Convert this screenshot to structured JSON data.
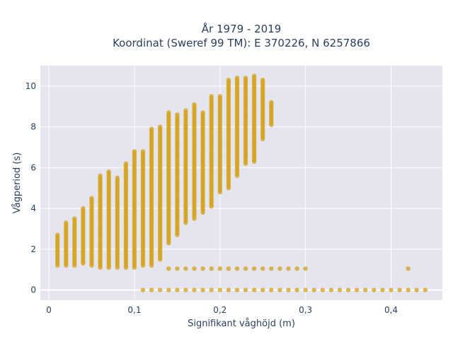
{
  "chart_data": {
    "type": "scatter",
    "title_lines": [
      "År 1979 - 2019",
      "Koordinat (Sweref 99 TM): E 370226, N 6257866"
    ],
    "xlabel": "Signifikant våghöjd (m)",
    "ylabel": "Vågperiod (s)",
    "xlim": [
      -0.01,
      0.46
    ],
    "ylim": [
      -0.5,
      11
    ],
    "x_ticks": [
      0,
      0.1,
      0.2,
      0.3,
      0.4
    ],
    "x_tick_labels": [
      "0",
      "0,1",
      "0,2",
      "0,3",
      "0,4"
    ],
    "y_ticks": [
      0,
      2,
      4,
      6,
      8,
      10
    ],
    "y_tick_labels": [
      "0",
      "2",
      "4",
      "6",
      "8",
      "10"
    ],
    "grid": true,
    "marker_color": "#D4A017",
    "background_color": "#E5E5F0",
    "columns": [
      {
        "x": 0.01,
        "y_min": 1.2,
        "y_max": 2.7
      },
      {
        "x": 0.02,
        "y_min": 1.2,
        "y_max": 3.3
      },
      {
        "x": 0.03,
        "y_min": 1.2,
        "y_max": 3.5
      },
      {
        "x": 0.04,
        "y_min": 1.3,
        "y_max": 4.0
      },
      {
        "x": 0.05,
        "y_min": 1.2,
        "y_max": 4.5
      },
      {
        "x": 0.06,
        "y_min": 1.1,
        "y_max": 5.6
      },
      {
        "x": 0.07,
        "y_min": 1.1,
        "y_max": 5.8
      },
      {
        "x": 0.08,
        "y_min": 1.1,
        "y_max": 5.5
      },
      {
        "x": 0.09,
        "y_min": 1.1,
        "y_max": 6.2
      },
      {
        "x": 0.1,
        "y_min": 1.1,
        "y_max": 6.8
      },
      {
        "x": 0.11,
        "y_min": 1.2,
        "y_max": 6.8
      },
      {
        "x": 0.12,
        "y_min": 1.2,
        "y_max": 7.9
      },
      {
        "x": 0.13,
        "y_min": 1.5,
        "y_max": 8.0
      },
      {
        "x": 0.14,
        "y_min": 2.3,
        "y_max": 8.7
      },
      {
        "x": 0.15,
        "y_min": 2.7,
        "y_max": 8.6
      },
      {
        "x": 0.16,
        "y_min": 3.3,
        "y_max": 8.8
      },
      {
        "x": 0.17,
        "y_min": 3.5,
        "y_max": 9.1
      },
      {
        "x": 0.18,
        "y_min": 3.8,
        "y_max": 8.7
      },
      {
        "x": 0.19,
        "y_min": 4.1,
        "y_max": 9.5
      },
      {
        "x": 0.2,
        "y_min": 4.8,
        "y_max": 9.5
      },
      {
        "x": 0.21,
        "y_min": 5.0,
        "y_max": 10.3
      },
      {
        "x": 0.22,
        "y_min": 5.6,
        "y_max": 10.4
      },
      {
        "x": 0.23,
        "y_min": 6.2,
        "y_max": 10.4
      },
      {
        "x": 0.24,
        "y_min": 6.3,
        "y_max": 10.5
      },
      {
        "x": 0.25,
        "y_min": 7.4,
        "y_max": 10.3
      },
      {
        "x": 0.26,
        "y_min": 8.1,
        "y_max": 9.2
      }
    ],
    "lower_band": {
      "x_min": 0.14,
      "x_max": 0.3,
      "step": 0.01,
      "y": 1.05,
      "extra_points": [
        {
          "x": 0.42,
          "y": 1.05
        }
      ]
    },
    "zero_band": {
      "x_min": 0.11,
      "x_max": 0.44,
      "step": 0.01,
      "y": 0
    }
  }
}
